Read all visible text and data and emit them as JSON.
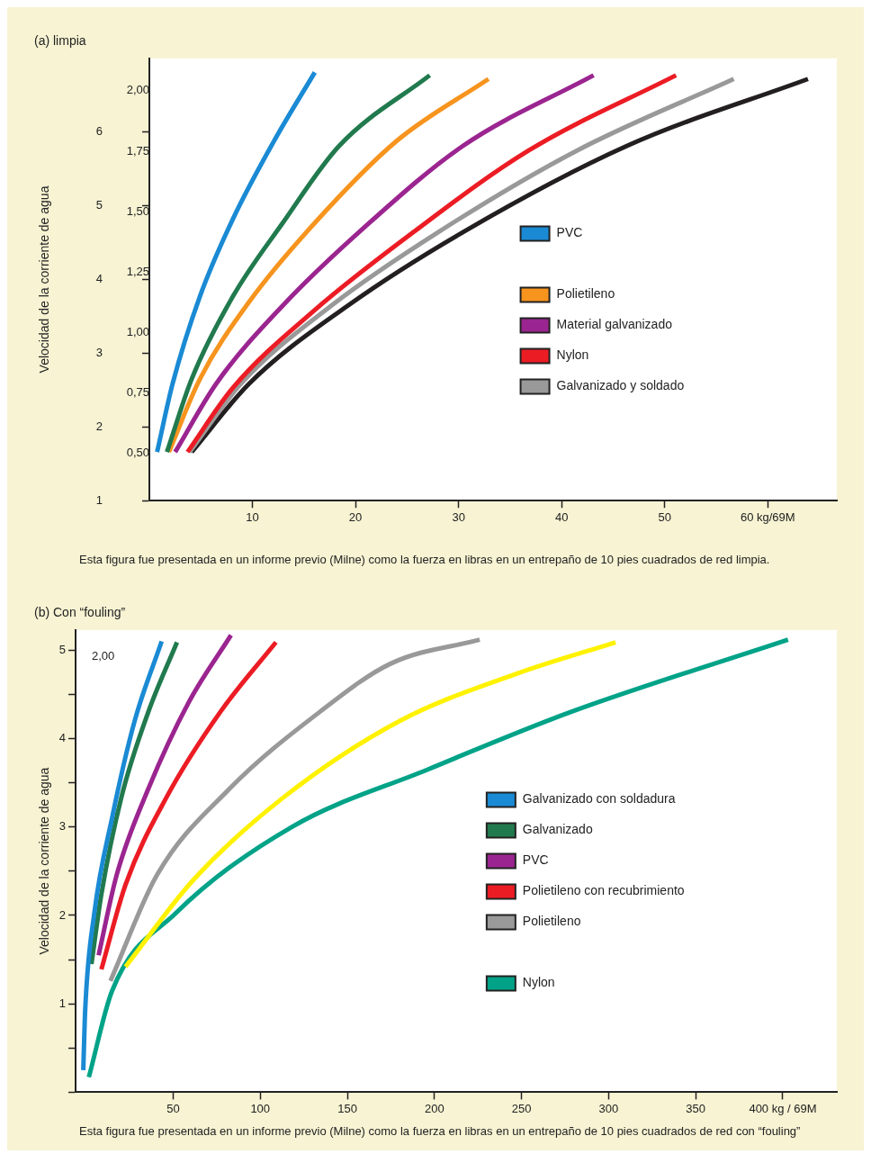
{
  "chart_data": [
    {
      "type": "line",
      "title": "(a) limpia",
      "ylabel": "Velocidad de la corriente de agua",
      "xlim": [
        0,
        66.7
      ],
      "xticks": [
        10,
        20,
        30,
        40,
        50,
        {
          "value": 60,
          "label": "60 kg/69M"
        }
      ],
      "ylim": [
        1,
        7
      ],
      "yticks": [
        1,
        2,
        3,
        4,
        5,
        6
      ],
      "y2lim": [
        0.305,
        2.134
      ],
      "y2ticks": [
        {
          "value": 0.5,
          "label": "0,50"
        },
        {
          "value": 0.75,
          "label": "0,75"
        },
        {
          "value": 1,
          "label": "1,00"
        },
        {
          "value": 1.25,
          "label": "1,25"
        },
        {
          "value": 1.5,
          "label": "1,50"
        },
        {
          "value": 1.75,
          "label": "1,75"
        },
        {
          "value": 2,
          "label": "2,00"
        }
      ],
      "grid": false,
      "legend": "right",
      "marker": "none",
      "line_style": "solid",
      "annotations": [
        "Esta  figura fue presentada en un informe previo (Milne) como la fuerza en libras en un entrepaño de 10 pies cuadrados de red limpia."
      ],
      "series": [
        {
          "name": "PVC",
          "color": "#1a8ad4",
          "x": [
            0.75,
            2.26,
            4.9,
            8.1,
            12.1,
            16.05
          ],
          "values": [
            1.66,
            2.59,
            3.77,
            4.82,
            5.88,
            6.81
          ]
        },
        {
          "color": "#217a4e",
          "x": [
            1.7,
            4.1,
            8.1,
            12.9,
            18.4,
            27.2
          ],
          "values": [
            1.66,
            2.65,
            3.77,
            4.76,
            5.81,
            6.77
          ]
        },
        {
          "name": "Polietileno",
          "color": "#f6941e",
          "x": [
            1.9,
            4.9,
            9.7,
            16.0,
            24.0,
            32.9
          ],
          "values": [
            1.66,
            2.65,
            3.7,
            4.76,
            5.88,
            6.72
          ]
        },
        {
          "name": "Material galvanizado",
          "color": "#9b2590",
          "x": [
            2.5,
            6.5,
            12.9,
            20.8,
            30.4,
            43.1
          ],
          "values": [
            1.66,
            2.59,
            3.64,
            4.7,
            5.81,
            6.77
          ]
        },
        {
          "name": "Nylon",
          "color": "#ec1c24",
          "x": [
            3.7,
            8.1,
            16.0,
            25.6,
            36.8,
            51.1
          ],
          "values": [
            1.66,
            2.53,
            3.58,
            4.64,
            5.75,
            6.77
          ]
        },
        {
          "name": "Galvanizado y soldado",
          "color": "#999999",
          "x": [
            3.9,
            8.9,
            17.6,
            28.0,
            41.5,
            56.7
          ],
          "values": [
            1.66,
            2.59,
            3.64,
            4.64,
            5.75,
            6.72
          ]
        },
        {
          "color": "#231f20",
          "x": [
            4.1,
            9.7,
            19.2,
            30.4,
            46.3,
            63.9
          ],
          "values": [
            1.66,
            2.59,
            3.64,
            4.64,
            5.81,
            6.72
          ]
        }
      ]
    },
    {
      "type": "line",
      "title": "(b) Con “fouling”",
      "ylabel": "Velocidad de la corriente de agua",
      "xlim": [
        -6,
        431
      ],
      "xticks": [
        50,
        100,
        150,
        200,
        250,
        300,
        350,
        {
          "value": 400,
          "label": "400 kg / 69M"
        }
      ],
      "ylim": [
        0,
        5.23
      ],
      "yticks": [
        {
          "value": 0,
          "label": null
        },
        {
          "value": 0.5,
          "label": null
        },
        1,
        {
          "value": 1.5,
          "label": null
        },
        2,
        {
          "value": 2.5,
          "label": null
        },
        3,
        {
          "value": 3.5,
          "label": null
        },
        4,
        {
          "value": 4.5,
          "label": null
        },
        5
      ],
      "grid": false,
      "legend": "right",
      "marker": "none",
      "line_style": "solid",
      "annotations": [
        "Esta  figura fue presentada en un informe previo (Milne) como la fuerza en libras en un entrepaño de 10 pies cuadrados de red con “fouling”",
        "2,00"
      ],
      "series": [
        {
          "name": "Galvanizado con soldadura",
          "color": "#1a8ad4",
          "x": [
            -1.6,
            -0.5,
            4.7,
            15,
            27.9,
            43.4
          ],
          "values": [
            0.25,
            0.93,
            2.02,
            3.11,
            4.2,
            5.1
          ]
        },
        {
          "name": "Galvanizado",
          "color": "#217a4e",
          "x": [
            3.1,
            8.8,
            20.2,
            35.7,
            52.2
          ],
          "values": [
            1.45,
            2.24,
            3.33,
            4.3,
            5.09
          ]
        },
        {
          "name": "PVC",
          "color": "#9b2590",
          "x": [
            7.2,
            17.6,
            35.7,
            58.9,
            83.2
          ],
          "values": [
            1.55,
            2.46,
            3.43,
            4.41,
            5.17
          ]
        },
        {
          "name": "Polietileno con recubrimiento",
          "color": "#ec1c24",
          "x": [
            8.8,
            22.7,
            46.0,
            77.0,
            109
          ],
          "values": [
            1.39,
            2.35,
            3.33,
            4.3,
            5.09
          ]
        },
        {
          "name": "Polietileno",
          "color": "#999999",
          "x": [
            14,
            40.8,
            82.2,
            134,
            175,
            226
          ],
          "values": [
            1.26,
            2.46,
            3.43,
            4.3,
            4.85,
            5.12
          ]
        },
        {
          "color": "#fff200",
          "x": [
            22.7,
            61.5,
            113,
            180,
            248,
            304
          ],
          "values": [
            1.42,
            2.4,
            3.33,
            4.2,
            4.74,
            5.09
          ]
        },
        {
          "name": "Nylon",
          "color": "#00a388",
          "x": [
            1.6,
            15,
            51.2,
            118,
            196,
            278,
            403
          ],
          "values": [
            0.17,
            1.15,
            2.02,
            3.0,
            3.65,
            4.3,
            5.12
          ]
        }
      ]
    }
  ]
}
